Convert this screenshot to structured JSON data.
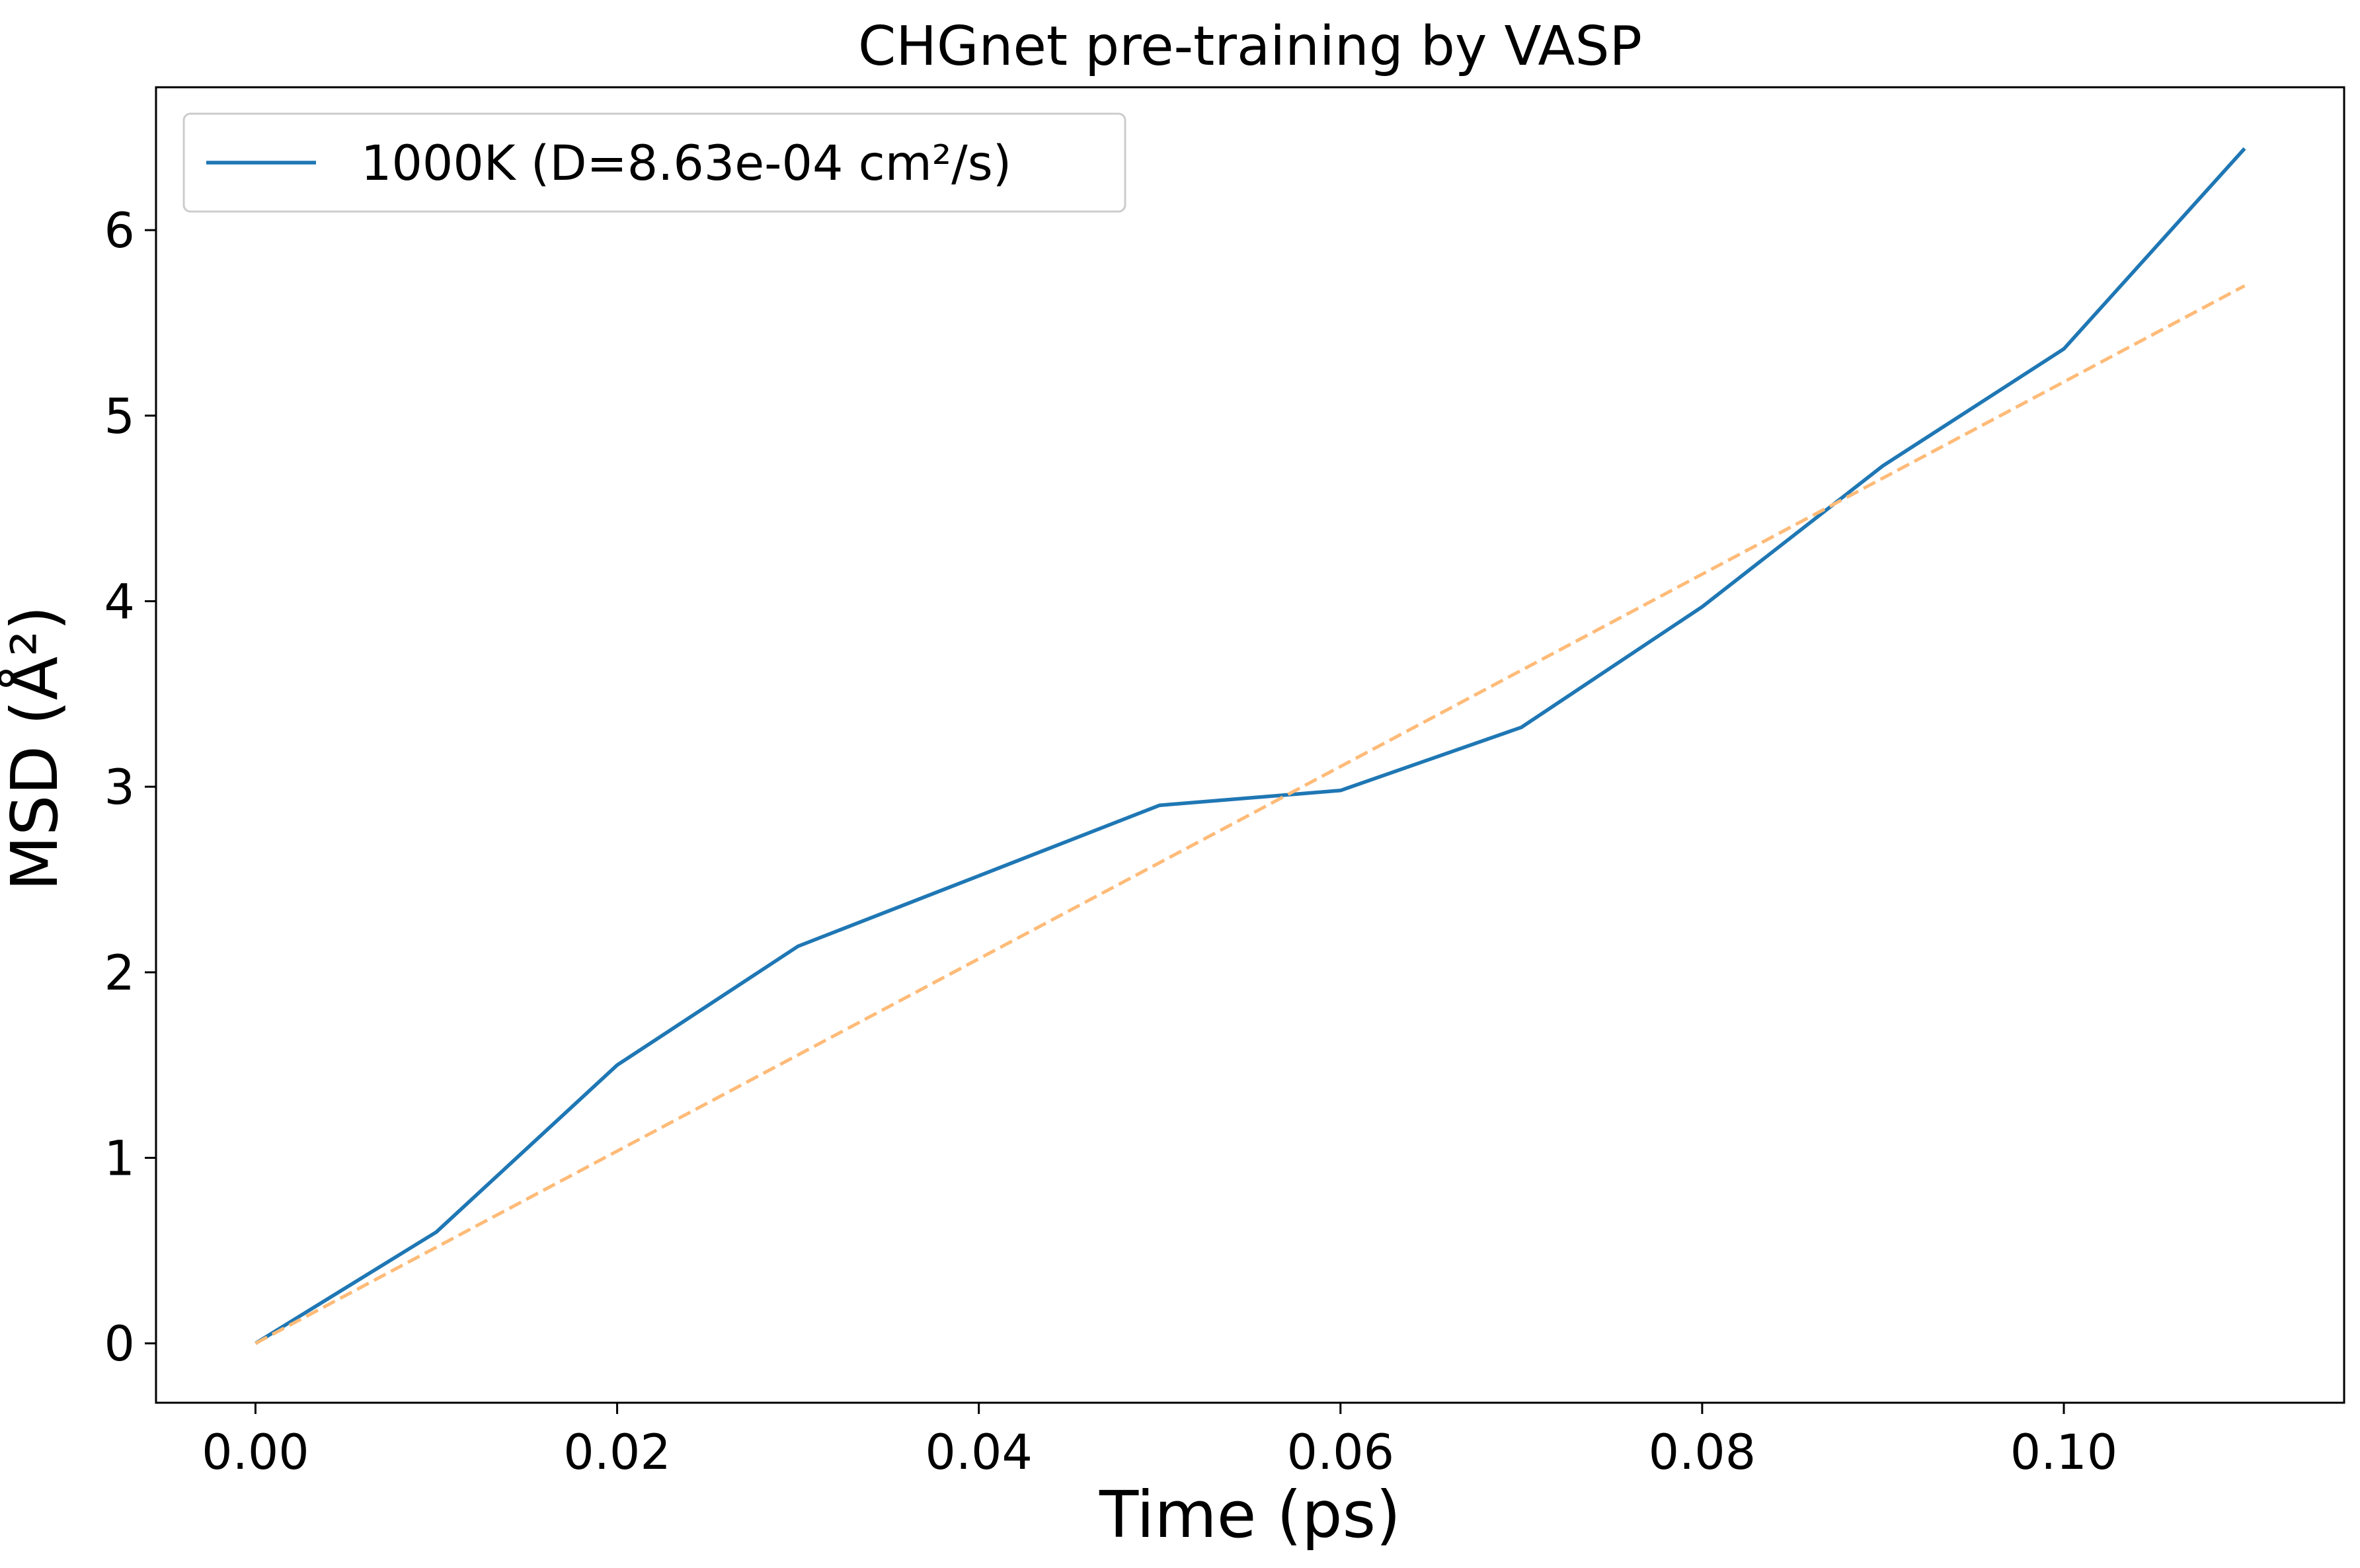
{
  "chart_data": {
    "type": "line",
    "title": "CHGnet pre-training by VASP",
    "xlabel": "Time (ps)",
    "ylabel": "MSD (Å²)",
    "xlim": [
      -0.0055,
      0.1155
    ],
    "ylim": [
      -0.32,
      6.77
    ],
    "xticks": [
      0.0,
      0.02,
      0.04,
      0.06,
      0.08,
      0.1
    ],
    "xtick_labels": [
      "0.00",
      "0.02",
      "0.04",
      "0.06",
      "0.08",
      "0.10"
    ],
    "yticks": [
      0,
      1,
      2,
      3,
      4,
      5,
      6
    ],
    "ytick_labels": [
      "0",
      "1",
      "2",
      "3",
      "4",
      "5",
      "6"
    ],
    "grid": false,
    "legend_position": "top-left",
    "series": [
      {
        "name": "1000K (D=8.63e-04 cm²/s)",
        "color": "#1f77b4",
        "style": "solid",
        "x": [
          0.0,
          0.01,
          0.02,
          0.03,
          0.04,
          0.05,
          0.06,
          0.07,
          0.08,
          0.09,
          0.1,
          0.11
        ],
        "y": [
          0.0,
          0.6,
          1.5,
          2.14,
          2.52,
          2.9,
          2.98,
          3.32,
          3.97,
          4.73,
          5.36,
          6.44
        ]
      },
      {
        "color": "#ffbb78",
        "style": "dashed",
        "x": [
          0.0,
          0.11
        ],
        "y": [
          0.0,
          5.7
        ]
      }
    ]
  }
}
